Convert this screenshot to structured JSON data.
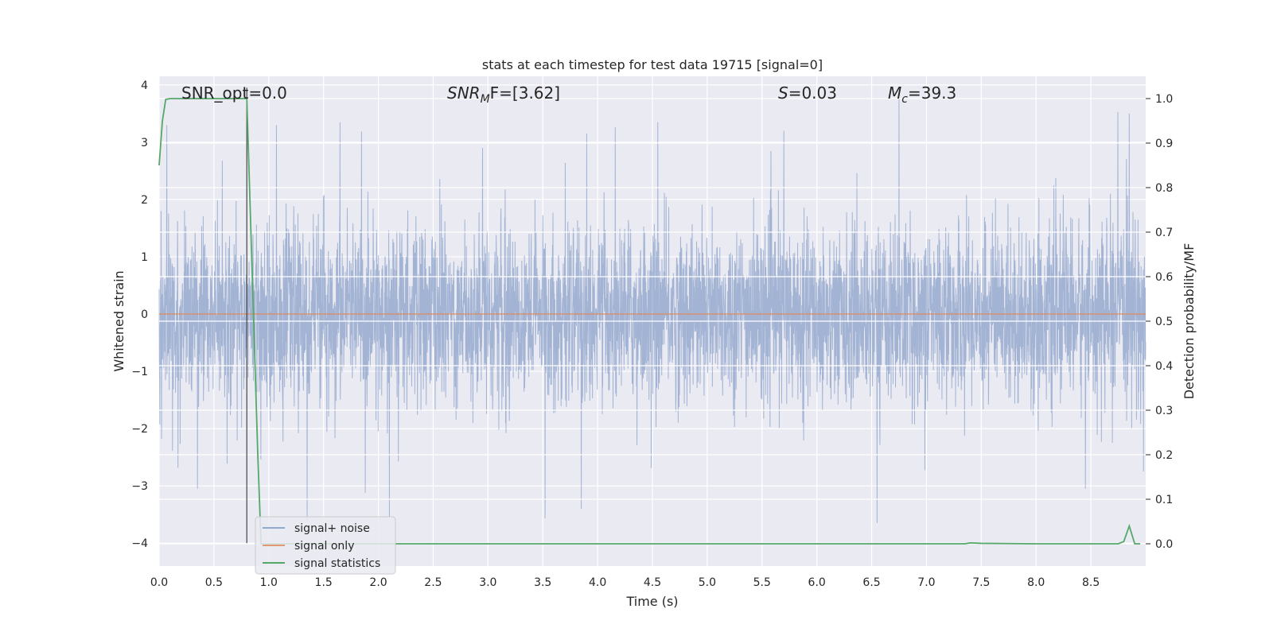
{
  "chart_data": {
    "type": "line",
    "title": "stats at each timestep for test data 19715 [signal=0]",
    "xlabel": "Time (s)",
    "ylabel": "Whitened strain",
    "y2label": "Detection probability/MF",
    "xlim": [
      0.0,
      9.0
    ],
    "ylim": [
      -4.4,
      4.15
    ],
    "y2lim": [
      -0.05,
      1.05
    ],
    "xticks": [
      "0.0",
      "0.5",
      "1.0",
      "1.5",
      "2.0",
      "2.5",
      "3.0",
      "3.5",
      "4.0",
      "4.5",
      "5.0",
      "5.5",
      "6.0",
      "6.5",
      "7.0",
      "7.5",
      "8.0",
      "8.5"
    ],
    "yticks": [
      "4",
      "3",
      "2",
      "1",
      "0",
      "−1",
      "−2",
      "−3",
      "−4"
    ],
    "y2ticks": [
      "1.0",
      "0.9",
      "0.8",
      "0.7",
      "0.6",
      "0.5",
      "0.4",
      "0.3",
      "0.2",
      "0.1",
      "0.0"
    ],
    "grid": true,
    "legend_position": "lower-left",
    "colors": {
      "background": "#eaeaf2",
      "grid": "#ffffff",
      "noise": "#4c72b0",
      "signal": "#dd8452",
      "stats": "#55a868",
      "marker": "#444444"
    },
    "annotations": {
      "snr_opt": "SNR_opt=0.0",
      "snr_mf_main": "SNR",
      "snr_mf_sub": "M",
      "snr_mf_rest": "F=[3.62]",
      "s_var": "S",
      "s_rest": "=0.03",
      "mc_var": "M",
      "mc_sub": "c",
      "mc_rest": "=39.3"
    },
    "vertical_marker_x": 0.8,
    "series": [
      {
        "name": "signal+ noise",
        "axis": "left",
        "description_free": true,
        "samples": 4500,
        "amplitude_envelope": {
          "core": 1.2,
          "peak_max": 3.8,
          "peak_min": -3.65
        },
        "peaks": [
          [
            0.07,
            3.3
          ],
          [
            1.07,
            3.3
          ],
          [
            1.65,
            3.35
          ],
          [
            2.95,
            2.9
          ],
          [
            3.9,
            3.15
          ],
          [
            4.55,
            3.35
          ],
          [
            5.7,
            3.2
          ],
          [
            6.75,
            3.75
          ],
          [
            8.85,
            3.5
          ],
          [
            8.98,
            3.2
          ]
        ],
        "troughs": [
          [
            0.35,
            -3.05
          ],
          [
            1.35,
            -3.6
          ],
          [
            2.1,
            -3.55
          ],
          [
            3.85,
            -3.4
          ],
          [
            6.55,
            -3.65
          ],
          [
            8.45,
            -3.05
          ],
          [
            8.98,
            -2.75
          ]
        ]
      },
      {
        "name": "signal only",
        "axis": "left",
        "x": [
          0.0,
          9.0
        ],
        "y": [
          0.0,
          0.0
        ]
      },
      {
        "name": "signal statistics",
        "axis": "right",
        "x": [
          0.0,
          0.03,
          0.06,
          0.1,
          0.2,
          0.4,
          0.6,
          0.78,
          0.8,
          0.85,
          0.9,
          0.93,
          1.0,
          2.0,
          4.0,
          6.0,
          7.35,
          7.4,
          7.5,
          8.0,
          8.6,
          8.7,
          8.75,
          8.8,
          8.85,
          8.9,
          8.95
        ],
        "y": [
          0.85,
          0.95,
          0.998,
          1.0,
          1.0,
          1.0,
          1.0,
          1.0,
          1.0,
          0.6,
          0.2,
          0.0,
          0.0,
          0.0,
          0.0,
          0.0,
          0.0,
          0.002,
          0.001,
          0.0,
          0.0,
          0.0,
          0.0,
          0.005,
          0.04,
          0.0,
          0.0
        ]
      }
    ]
  },
  "legend": {
    "items": [
      {
        "label": "signal+ noise"
      },
      {
        "label": "signal only"
      },
      {
        "label": "signal statistics"
      }
    ]
  }
}
